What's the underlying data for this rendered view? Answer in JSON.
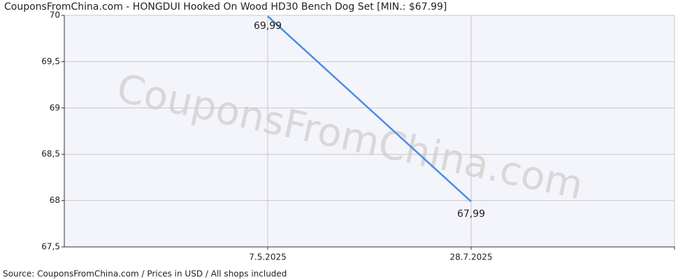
{
  "chart_data": {
    "type": "line",
    "title": "CouponsFromChina.com - HONGDUI Hooked On Wood HD30 Bench Dog Set [MIN.: $67.99]",
    "source": "Source:  CouponsFromChina.com / Prices in USD / All shops included",
    "watermark": "CouponsFromChina.com",
    "categories": [
      "7.5.2025",
      "28.7.2025"
    ],
    "series": [
      {
        "color": "#4a8ee6",
        "values": [
          69.99,
          67.99
        ],
        "value_labels": [
          "69,99",
          "67,99"
        ]
      }
    ],
    "ylim": [
      67.5,
      70
    ],
    "yticks": [
      {
        "value": 67.5,
        "label": "67,5"
      },
      68,
      {
        "value": 68.5,
        "label": "68,5"
      },
      69,
      {
        "value": 69.5,
        "label": "69,5"
      },
      70
    ],
    "grid": true
  }
}
